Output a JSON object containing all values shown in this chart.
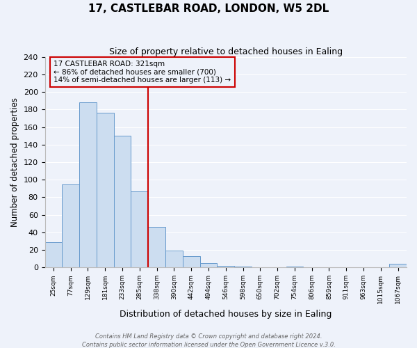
{
  "title1": "17, CASTLEBAR ROAD, LONDON, W5 2DL",
  "title2": "Size of property relative to detached houses in Ealing",
  "xlabel": "Distribution of detached houses by size in Ealing",
  "ylabel": "Number of detached properties",
  "bar_labels": [
    "25sqm",
    "77sqm",
    "129sqm",
    "181sqm",
    "233sqm",
    "285sqm",
    "338sqm",
    "390sqm",
    "442sqm",
    "494sqm",
    "546sqm",
    "598sqm",
    "650sqm",
    "702sqm",
    "754sqm",
    "806sqm",
    "859sqm",
    "911sqm",
    "963sqm",
    "1015sqm",
    "1067sqm"
  ],
  "bar_heights": [
    29,
    95,
    188,
    176,
    150,
    87,
    46,
    19,
    13,
    5,
    2,
    1,
    0,
    0,
    1,
    0,
    0,
    0,
    0,
    0,
    4
  ],
  "bar_color": "#ccddf0",
  "bar_edge_color": "#6699cc",
  "vline_color": "#cc0000",
  "annotation_title": "17 CASTLEBAR ROAD: 321sqm",
  "annotation_line1": "← 86% of detached houses are smaller (700)",
  "annotation_line2": "14% of semi-detached houses are larger (113) →",
  "annotation_box_edge": "#cc0000",
  "ylim": [
    0,
    240
  ],
  "yticks": [
    0,
    20,
    40,
    60,
    80,
    100,
    120,
    140,
    160,
    180,
    200,
    220,
    240
  ],
  "footer1": "Contains HM Land Registry data © Crown copyright and database right 2024.",
  "footer2": "Contains public sector information licensed under the Open Government Licence v.3.0.",
  "background_color": "#eef2fa",
  "grid_color": "#ffffff"
}
